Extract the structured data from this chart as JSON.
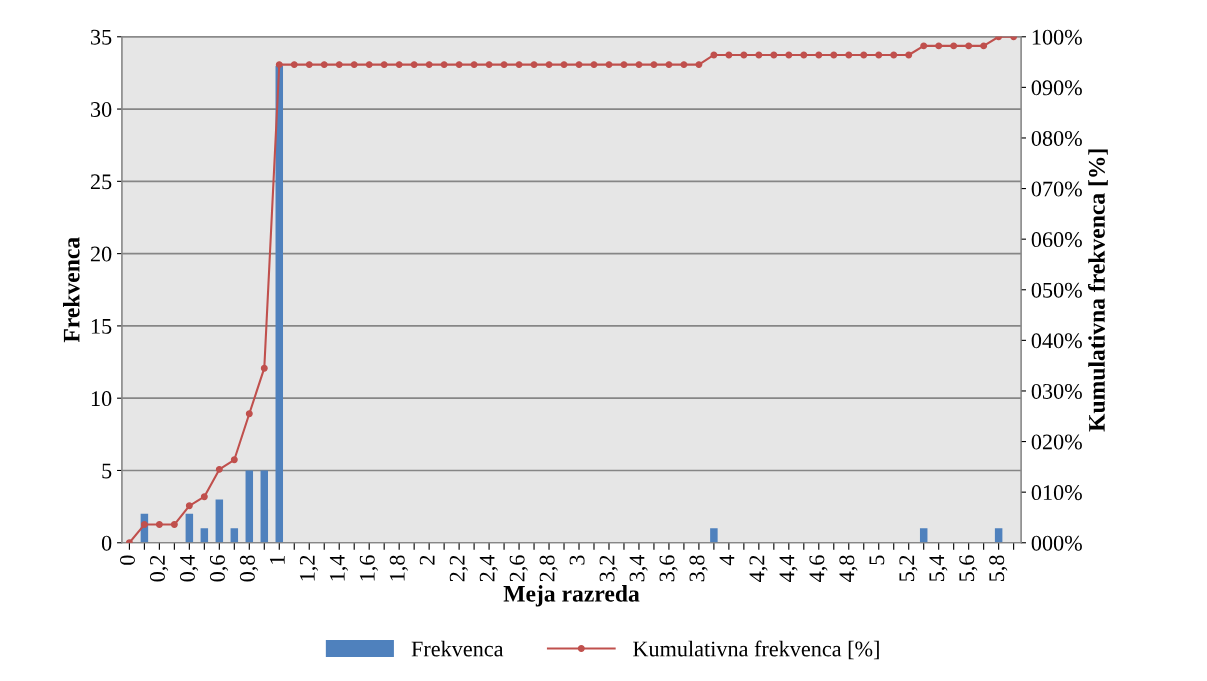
{
  "chart_data": {
    "type": "bar",
    "xlabel": "Meja razreda",
    "ylabel": "Frekvenca",
    "y2label": "Kumulativna frekvenca [%]",
    "categories": [
      "0",
      null,
      "0,2",
      null,
      "0,4",
      null,
      "0,6",
      null,
      "0,8",
      null,
      "1",
      null,
      "1,2",
      null,
      "1,4",
      null,
      "1,6",
      null,
      "1,8",
      null,
      "2",
      null,
      "2,2",
      null,
      "2,4",
      null,
      "2,6",
      null,
      "2,8",
      null,
      "3",
      null,
      "3,2",
      null,
      "3,4",
      null,
      "3,6",
      null,
      "3,8",
      null,
      "4",
      null,
      "4,2",
      null,
      "4,4",
      null,
      "4,6",
      null,
      "4,8",
      null,
      "5",
      null,
      "5,2",
      null,
      "5,4",
      null,
      "5,6",
      null,
      "5,8",
      null
    ],
    "series": [
      {
        "name": "Frekvenca",
        "color": "#4f81bd",
        "values": [
          0,
          2,
          0,
          0,
          2,
          1,
          3,
          1,
          5,
          5,
          33,
          0,
          0,
          0,
          0,
          0,
          0,
          0,
          0,
          0,
          0,
          0,
          0,
          0,
          0,
          0,
          0,
          0,
          0,
          0,
          0,
          0,
          0,
          0,
          0,
          0,
          0,
          0,
          0,
          1,
          0,
          0,
          0,
          0,
          0,
          0,
          0,
          0,
          0,
          0,
          0,
          0,
          0,
          1,
          0,
          0,
          0,
          0,
          1,
          0
        ]
      },
      {
        "name": "Kumulativna frekvenca [%]",
        "type": "line",
        "axis": "y2",
        "color": "#c0504d",
        "marker": "circle",
        "values": [
          0,
          3.6,
          3.6,
          3.6,
          7.3,
          9.1,
          14.5,
          16.4,
          25.5,
          34.5,
          94.5,
          94.5,
          94.5,
          94.5,
          94.5,
          94.5,
          94.5,
          94.5,
          94.5,
          94.5,
          94.5,
          94.5,
          94.5,
          94.5,
          94.5,
          94.5,
          94.5,
          94.5,
          94.5,
          94.5,
          94.5,
          94.5,
          94.5,
          94.5,
          94.5,
          94.5,
          94.5,
          94.5,
          94.5,
          96.4,
          96.4,
          96.4,
          96.4,
          96.4,
          96.4,
          96.4,
          96.4,
          96.4,
          96.4,
          96.4,
          96.4,
          96.4,
          96.4,
          98.2,
          98.2,
          98.2,
          98.2,
          98.2,
          100,
          100
        ]
      }
    ],
    "ylim": [
      0,
      35
    ],
    "yticks": [
      0,
      5,
      10,
      15,
      20,
      25,
      30,
      35
    ],
    "y2lim": [
      0,
      100
    ],
    "y2ticks": [
      {
        "value": 0,
        "label": "000%"
      },
      {
        "value": 10,
        "label": "010%"
      },
      {
        "value": 20,
        "label": "020%"
      },
      {
        "value": 30,
        "label": "030%"
      },
      {
        "value": 40,
        "label": "040%"
      },
      {
        "value": 50,
        "label": "050%"
      },
      {
        "value": 60,
        "label": "060%"
      },
      {
        "value": 70,
        "label": "070%"
      },
      {
        "value": 80,
        "label": "080%"
      },
      {
        "value": 90,
        "label": "090%"
      },
      {
        "value": 100,
        "label": "100%"
      }
    ],
    "grid": "y",
    "legend": "bottom"
  }
}
